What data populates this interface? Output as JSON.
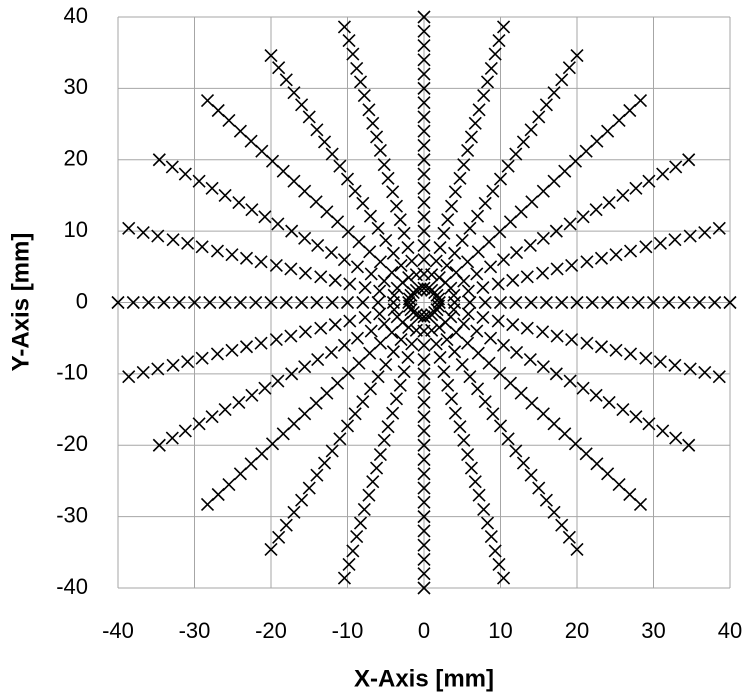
{
  "chart_data": {
    "type": "scatter",
    "xlabel": "X-Axis [mm]",
    "ylabel": "Y-Axis [mm]",
    "xlim": [
      -40,
      40
    ],
    "ylim": [
      -40,
      40
    ],
    "xticks": [
      -40,
      -30,
      -20,
      -10,
      0,
      10,
      20,
      30,
      40
    ],
    "yticks": [
      -40,
      -30,
      -20,
      -10,
      0,
      10,
      20,
      30,
      40
    ],
    "grid": true,
    "color": "#000000",
    "series": [
      {
        "x": [
          2,
          4,
          6,
          8,
          10,
          12,
          14,
          16,
          18,
          20,
          22,
          24,
          26,
          28,
          30,
          32,
          34,
          36,
          38,
          40
        ],
        "y": [
          0,
          0,
          0,
          0,
          0,
          0,
          0,
          0,
          0,
          0,
          0,
          0,
          0,
          0,
          0,
          0,
          0,
          0,
          0,
          0
        ]
      },
      {
        "x": [
          1.9,
          3.9,
          5.8,
          7.7,
          9.7,
          11.6,
          13.5,
          15.5,
          17.4,
          19.3,
          21.3,
          23.2,
          25.1,
          27,
          29,
          30.9,
          32.8,
          34.8,
          36.7,
          38.6
        ],
        "y": [
          0.5,
          1,
          1.6,
          2.1,
          2.6,
          3.1,
          3.6,
          4.1,
          4.7,
          5.2,
          5.7,
          6.2,
          6.7,
          7.2,
          7.8,
          8.3,
          8.8,
          9.3,
          9.8,
          10.4
        ]
      },
      {
        "x": [
          1.7,
          3.5,
          5.2,
          6.9,
          8.7,
          10.4,
          12.1,
          13.9,
          15.6,
          17.3,
          19.1,
          20.8,
          22.5,
          24.2,
          26,
          27.7,
          29.4,
          31.2,
          32.9,
          34.6
        ],
        "y": [
          1,
          2,
          3,
          4,
          5,
          6,
          7,
          8,
          9,
          10,
          11,
          12,
          13,
          14,
          15,
          16,
          17,
          18,
          19,
          20
        ]
      },
      {
        "x": [
          1.4,
          2.8,
          4.2,
          5.7,
          7.1,
          8.5,
          9.9,
          11.3,
          12.7,
          14.1,
          15.6,
          17,
          18.4,
          19.8,
          21.2,
          22.6,
          24,
          25.5,
          26.9,
          28.3
        ],
        "y": [
          1.4,
          2.8,
          4.2,
          5.7,
          7.1,
          8.5,
          9.9,
          11.3,
          12.7,
          14.1,
          15.6,
          17,
          18.4,
          19.8,
          21.2,
          22.6,
          24,
          25.5,
          26.9,
          28.3
        ]
      },
      {
        "x": [
          1,
          2,
          3,
          4,
          5,
          6,
          7,
          8,
          9,
          10,
          11,
          12,
          13,
          14,
          15,
          16,
          17,
          18,
          19,
          20
        ],
        "y": [
          1.7,
          3.5,
          5.2,
          6.9,
          8.7,
          10.4,
          12.1,
          13.9,
          15.6,
          17.3,
          19.1,
          20.8,
          22.5,
          24.2,
          26,
          27.7,
          29.4,
          31.2,
          32.9,
          34.6
        ]
      },
      {
        "x": [
          0.5,
          1,
          1.6,
          2.1,
          2.6,
          3.1,
          3.6,
          4.1,
          4.7,
          5.2,
          5.7,
          6.2,
          6.7,
          7.2,
          7.8,
          8.3,
          8.8,
          9.3,
          9.8,
          10.4
        ],
        "y": [
          1.9,
          3.9,
          5.8,
          7.7,
          9.7,
          11.6,
          13.5,
          15.5,
          17.4,
          19.3,
          21.3,
          23.2,
          25.1,
          27,
          29,
          30.9,
          32.8,
          34.8,
          36.7,
          38.6
        ]
      },
      {
        "x": [
          0,
          0,
          0,
          0,
          0,
          0,
          0,
          0,
          0,
          0,
          0,
          0,
          0,
          0,
          0,
          0,
          0,
          0,
          0,
          0
        ],
        "y": [
          2,
          4,
          6,
          8,
          10,
          12,
          14,
          16,
          18,
          20,
          22,
          24,
          26,
          28,
          30,
          32,
          34,
          36,
          38,
          40
        ]
      },
      {
        "x": [
          -0.5,
          -1,
          -1.6,
          -2.1,
          -2.6,
          -3.1,
          -3.6,
          -4.1,
          -4.7,
          -5.2,
          -5.7,
          -6.2,
          -6.7,
          -7.2,
          -7.8,
          -8.3,
          -8.8,
          -9.3,
          -9.8,
          -10.4
        ],
        "y": [
          1.9,
          3.9,
          5.8,
          7.7,
          9.7,
          11.6,
          13.5,
          15.5,
          17.4,
          19.3,
          21.3,
          23.2,
          25.1,
          27,
          29,
          30.9,
          32.8,
          34.8,
          36.7,
          38.6
        ]
      },
      {
        "x": [
          -1,
          -2,
          -3,
          -4,
          -5,
          -6,
          -7,
          -8,
          -9,
          -10,
          -11,
          -12,
          -13,
          -14,
          -15,
          -16,
          -17,
          -18,
          -19,
          -20
        ],
        "y": [
          1.7,
          3.5,
          5.2,
          6.9,
          8.7,
          10.4,
          12.1,
          13.9,
          15.6,
          17.3,
          19.1,
          20.8,
          22.5,
          24.2,
          26,
          27.7,
          29.4,
          31.2,
          32.9,
          34.6
        ]
      },
      {
        "x": [
          -1.4,
          -2.8,
          -4.2,
          -5.7,
          -7.1,
          -8.5,
          -9.9,
          -11.3,
          -12.7,
          -14.1,
          -15.6,
          -17,
          -18.4,
          -19.8,
          -21.2,
          -22.6,
          -24,
          -25.5,
          -26.9,
          -28.3
        ],
        "y": [
          1.4,
          2.8,
          4.2,
          5.7,
          7.1,
          8.5,
          9.9,
          11.3,
          12.7,
          14.1,
          15.6,
          17,
          18.4,
          19.8,
          21.2,
          22.6,
          24,
          25.5,
          26.9,
          28.3
        ]
      },
      {
        "x": [
          -1.7,
          -3.5,
          -5.2,
          -6.9,
          -8.7,
          -10.4,
          -12.1,
          -13.9,
          -15.6,
          -17.3,
          -19.1,
          -20.8,
          -22.5,
          -24.2,
          -26,
          -27.7,
          -29.4,
          -31.2,
          -32.9,
          -34.6
        ],
        "y": [
          1,
          2,
          3,
          4,
          5,
          6,
          7,
          8,
          9,
          10,
          11,
          12,
          13,
          14,
          15,
          16,
          17,
          18,
          19,
          20
        ]
      },
      {
        "x": [
          -1.9,
          -3.9,
          -5.8,
          -7.7,
          -9.7,
          -11.6,
          -13.5,
          -15.5,
          -17.4,
          -19.3,
          -21.3,
          -23.2,
          -25.1,
          -27,
          -29,
          -30.9,
          -32.8,
          -34.8,
          -36.7,
          -38.6
        ],
        "y": [
          0.5,
          1,
          1.6,
          2.1,
          2.6,
          3.1,
          3.6,
          4.1,
          4.7,
          5.2,
          5.7,
          6.2,
          6.7,
          7.2,
          7.8,
          8.3,
          8.8,
          9.3,
          9.8,
          10.4
        ]
      },
      {
        "x": [
          -2,
          -4,
          -6,
          -8,
          -10,
          -12,
          -14,
          -16,
          -18,
          -20,
          -22,
          -24,
          -26,
          -28,
          -30,
          -32,
          -34,
          -36,
          -38,
          -40
        ],
        "y": [
          0,
          0,
          0,
          0,
          0,
          0,
          0,
          0,
          0,
          0,
          0,
          0,
          0,
          0,
          0,
          0,
          0,
          0,
          0,
          0
        ]
      },
      {
        "x": [
          -1.9,
          -3.9,
          -5.8,
          -7.7,
          -9.7,
          -11.6,
          -13.5,
          -15.5,
          -17.4,
          -19.3,
          -21.3,
          -23.2,
          -25.1,
          -27,
          -29,
          -30.9,
          -32.8,
          -34.8,
          -36.7,
          -38.6
        ],
        "y": [
          -0.5,
          -1,
          -1.6,
          -2.1,
          -2.6,
          -3.1,
          -3.6,
          -4.1,
          -4.7,
          -5.2,
          -5.7,
          -6.2,
          -6.7,
          -7.2,
          -7.8,
          -8.3,
          -8.8,
          -9.3,
          -9.8,
          -10.4
        ]
      },
      {
        "x": [
          -1.7,
          -3.5,
          -5.2,
          -6.9,
          -8.7,
          -10.4,
          -12.1,
          -13.9,
          -15.6,
          -17.3,
          -19.1,
          -20.8,
          -22.5,
          -24.2,
          -26,
          -27.7,
          -29.4,
          -31.2,
          -32.9,
          -34.6
        ],
        "y": [
          -1,
          -2,
          -3,
          -4,
          -5,
          -6,
          -7,
          -8,
          -9,
          -10,
          -11,
          -12,
          -13,
          -14,
          -15,
          -16,
          -17,
          -18,
          -19,
          -20
        ]
      },
      {
        "x": [
          -1.4,
          -2.8,
          -4.2,
          -5.7,
          -7.1,
          -8.5,
          -9.9,
          -11.3,
          -12.7,
          -14.1,
          -15.6,
          -17,
          -18.4,
          -19.8,
          -21.2,
          -22.6,
          -24,
          -25.5,
          -26.9,
          -28.3
        ],
        "y": [
          -1.4,
          -2.8,
          -4.2,
          -5.7,
          -7.1,
          -8.5,
          -9.9,
          -11.3,
          -12.7,
          -14.1,
          -15.6,
          -17,
          -18.4,
          -19.8,
          -21.2,
          -22.6,
          -24,
          -25.5,
          -26.9,
          -28.3
        ]
      },
      {
        "x": [
          -1,
          -2,
          -3,
          -4,
          -5,
          -6,
          -7,
          -8,
          -9,
          -10,
          -11,
          -12,
          -13,
          -14,
          -15,
          -16,
          -17,
          -18,
          -19,
          -20
        ],
        "y": [
          -1.7,
          -3.5,
          -5.2,
          -6.9,
          -8.7,
          -10.4,
          -12.1,
          -13.9,
          -15.6,
          -17.3,
          -19.1,
          -20.8,
          -22.5,
          -24.2,
          -26,
          -27.7,
          -29.4,
          -31.2,
          -32.9,
          -34.6
        ]
      },
      {
        "x": [
          -0.5,
          -1,
          -1.6,
          -2.1,
          -2.6,
          -3.1,
          -3.6,
          -4.1,
          -4.7,
          -5.2,
          -5.7,
          -6.2,
          -6.7,
          -7.2,
          -7.8,
          -8.3,
          -8.8,
          -9.3,
          -9.8,
          -10.4
        ],
        "y": [
          -1.9,
          -3.9,
          -5.8,
          -7.7,
          -9.7,
          -11.6,
          -13.5,
          -15.5,
          -17.4,
          -19.3,
          -21.3,
          -23.2,
          -25.1,
          -27,
          -29,
          -30.9,
          -32.8,
          -34.8,
          -36.7,
          -38.6
        ]
      },
      {
        "x": [
          0,
          0,
          0,
          0,
          0,
          0,
          0,
          0,
          0,
          0,
          0,
          0,
          0,
          0,
          0,
          0,
          0,
          0,
          0,
          0
        ],
        "y": [
          -2,
          -4,
          -6,
          -8,
          -10,
          -12,
          -14,
          -16,
          -18,
          -20,
          -22,
          -24,
          -26,
          -28,
          -30,
          -32,
          -34,
          -36,
          -38,
          -40
        ]
      },
      {
        "x": [
          0.5,
          1,
          1.6,
          2.1,
          2.6,
          3.1,
          3.6,
          4.1,
          4.7,
          5.2,
          5.7,
          6.2,
          6.7,
          7.2,
          7.8,
          8.3,
          8.8,
          9.3,
          9.8,
          10.4
        ],
        "y": [
          -1.9,
          -3.9,
          -5.8,
          -7.7,
          -9.7,
          -11.6,
          -13.5,
          -15.5,
          -17.4,
          -19.3,
          -21.3,
          -23.2,
          -25.1,
          -27,
          -29,
          -30.9,
          -32.8,
          -34.8,
          -36.7,
          -38.6
        ]
      },
      {
        "x": [
          1,
          2,
          3,
          4,
          5,
          6,
          7,
          8,
          9,
          10,
          11,
          12,
          13,
          14,
          15,
          16,
          17,
          18,
          19,
          20
        ],
        "y": [
          -1.7,
          -3.5,
          -5.2,
          -6.9,
          -8.7,
          -10.4,
          -12.1,
          -13.9,
          -15.6,
          -17.3,
          -19.1,
          -20.8,
          -22.5,
          -24.2,
          -26,
          -27.7,
          -29.4,
          -31.2,
          -32.9,
          -34.6
        ]
      },
      {
        "x": [
          1.4,
          2.8,
          4.2,
          5.7,
          7.1,
          8.5,
          9.9,
          11.3,
          12.7,
          14.1,
          15.6,
          17,
          18.4,
          19.8,
          21.2,
          22.6,
          24,
          25.5,
          26.9,
          28.3
        ],
        "y": [
          -1.4,
          -2.8,
          -4.2,
          -5.7,
          -7.1,
          -8.5,
          -9.9,
          -11.3,
          -12.7,
          -14.1,
          -15.6,
          -17,
          -18.4,
          -19.8,
          -21.2,
          -22.6,
          -24,
          -25.5,
          -26.9,
          -28.3
        ]
      },
      {
        "x": [
          1.7,
          3.5,
          5.2,
          6.9,
          8.7,
          10.4,
          12.1,
          13.9,
          15.6,
          17.3,
          19.1,
          20.8,
          22.5,
          24.2,
          26,
          27.7,
          29.4,
          31.2,
          32.9,
          34.6
        ],
        "y": [
          -1,
          -2,
          -3,
          -4,
          -5,
          -6,
          -7,
          -8,
          -9,
          -10,
          -11,
          -12,
          -13,
          -14,
          -15,
          -16,
          -17,
          -18,
          -19,
          -20
        ]
      },
      {
        "x": [
          1.9,
          3.9,
          5.8,
          7.7,
          9.7,
          11.6,
          13.5,
          15.5,
          17.4,
          19.3,
          21.3,
          23.2,
          25.1,
          27,
          29,
          30.9,
          32.8,
          34.8,
          36.7,
          38.6
        ],
        "y": [
          -0.5,
          -1,
          -1.6,
          -2.1,
          -2.6,
          -3.1,
          -3.6,
          -4.1,
          -4.7,
          -5.2,
          -5.7,
          -6.2,
          -6.7,
          -7.2,
          -7.8,
          -8.3,
          -8.8,
          -9.3,
          -9.8,
          -10.4
        ]
      }
    ]
  }
}
